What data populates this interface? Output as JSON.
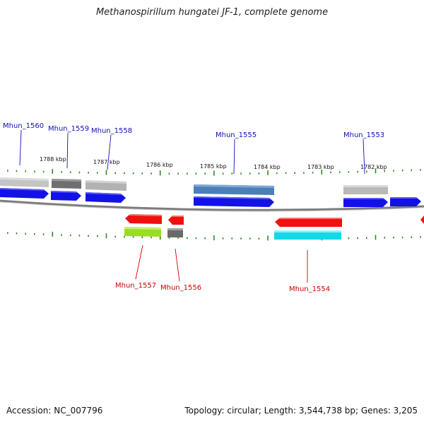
{
  "title": "Methanospirillum hungatei JF-1, complete genome",
  "footer": {
    "accession": "Accession: NC_007796",
    "summary": "Topology: circular; Length: 3,544,738 bp; Genes: 3,205"
  },
  "colors": {
    "plus_label": "#1010b0",
    "minus_label": "#cc0000",
    "tick": "#2a8a2a",
    "backbone": "#888888"
  },
  "scale": {
    "unit": "kbp",
    "ticks": [
      "1788 kbp",
      "1787 kbp",
      "1786 kbp",
      "1785 kbp",
      "1784 kbp",
      "1783 kbp",
      "1782 kbp"
    ]
  },
  "genes": [
    {
      "id": "Mhun_1560",
      "strand": "+"
    },
    {
      "id": "Mhun_1559",
      "strand": "+"
    },
    {
      "id": "Mhun_1558",
      "strand": "+"
    },
    {
      "id": "Mhun_1557",
      "strand": "-"
    },
    {
      "id": "Mhun_1556",
      "strand": "-"
    },
    {
      "id": "Mhun_1555",
      "strand": "+"
    },
    {
      "id": "Mhun_1554",
      "strand": "-"
    },
    {
      "id": "Mhun_1553",
      "strand": "+"
    }
  ]
}
